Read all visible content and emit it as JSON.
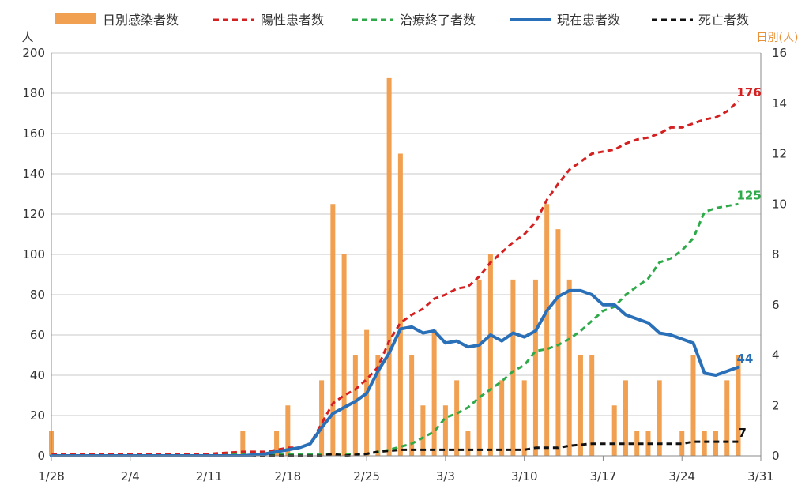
{
  "chart_data": {
    "type": "bar+line",
    "legend": {
      "daily": "日別感染者数",
      "positive": "陽性患者数",
      "recovered": "治療終了者数",
      "current": "現在患者数",
      "deaths": "死亡者数"
    },
    "left_axis": {
      "unit": "人",
      "min": 0,
      "max": 200,
      "ticks": [
        0,
        20,
        40,
        60,
        80,
        100,
        120,
        140,
        160,
        180,
        200
      ]
    },
    "right_axis": {
      "unit": "日別(人)",
      "min": 0,
      "max": 16,
      "ticks": [
        0,
        2,
        4,
        6,
        8,
        10,
        12,
        14,
        16
      ]
    },
    "x_ticks": [
      {
        "label": "1/28",
        "day": 0
      },
      {
        "label": "2/4",
        "day": 7
      },
      {
        "label": "2/11",
        "day": 14
      },
      {
        "label": "2/18",
        "day": 21
      },
      {
        "label": "2/25",
        "day": 28
      },
      {
        "label": "3/3",
        "day": 35
      },
      {
        "label": "3/10",
        "day": 42
      },
      {
        "label": "3/17",
        "day": 49
      },
      {
        "label": "3/24",
        "day": 56
      },
      {
        "label": "3/31",
        "day": 63
      }
    ],
    "day_span": 63,
    "colors": {
      "daily": "#F0A050",
      "positive": "#D42020",
      "recovered": "#2EAA4A",
      "current": "#2A70B8",
      "deaths": "#111111"
    },
    "end_labels": {
      "positive": "176",
      "recovered": "125",
      "current": "44",
      "deaths": "7"
    },
    "daily_bars": [
      {
        "day": 0,
        "value": 1
      },
      {
        "day": 17,
        "value": 1
      },
      {
        "day": 20,
        "value": 1
      },
      {
        "day": 21,
        "value": 2
      },
      {
        "day": 24,
        "value": 3
      },
      {
        "day": 25,
        "value": 10
      },
      {
        "day": 26,
        "value": 8
      },
      {
        "day": 27,
        "value": 4
      },
      {
        "day": 28,
        "value": 5
      },
      {
        "day": 29,
        "value": 4
      },
      {
        "day": 30,
        "value": 15
      },
      {
        "day": 31,
        "value": 12
      },
      {
        "day": 32,
        "value": 4
      },
      {
        "day": 33,
        "value": 2
      },
      {
        "day": 34,
        "value": 5
      },
      {
        "day": 35,
        "value": 2
      },
      {
        "day": 36,
        "value": 3
      },
      {
        "day": 37,
        "value": 1
      },
      {
        "day": 38,
        "value": 7
      },
      {
        "day": 39,
        "value": 8
      },
      {
        "day": 40,
        "value": 3
      },
      {
        "day": 41,
        "value": 7
      },
      {
        "day": 42,
        "value": 3
      },
      {
        "day": 43,
        "value": 7
      },
      {
        "day": 44,
        "value": 10
      },
      {
        "day": 45,
        "value": 9
      },
      {
        "day": 46,
        "value": 7
      },
      {
        "day": 47,
        "value": 4
      },
      {
        "day": 48,
        "value": 4
      },
      {
        "day": 50,
        "value": 2
      },
      {
        "day": 51,
        "value": 3
      },
      {
        "day": 52,
        "value": 1
      },
      {
        "day": 53,
        "value": 1
      },
      {
        "day": 54,
        "value": 3
      },
      {
        "day": 56,
        "value": 1
      },
      {
        "day": 57,
        "value": 4
      },
      {
        "day": 58,
        "value": 1
      },
      {
        "day": 59,
        "value": 1
      },
      {
        "day": 60,
        "value": 3
      },
      {
        "day": 61,
        "value": 4
      }
    ],
    "series": [
      {
        "key": "positive",
        "name": "陽性患者数",
        "dashed": true,
        "points": [
          [
            0,
            1
          ],
          [
            7,
            1
          ],
          [
            14,
            1
          ],
          [
            17,
            2
          ],
          [
            19,
            2
          ],
          [
            20,
            3
          ],
          [
            21,
            4
          ],
          [
            22,
            4
          ],
          [
            23,
            6
          ],
          [
            24,
            16
          ],
          [
            25,
            26
          ],
          [
            26,
            30
          ],
          [
            27,
            33
          ],
          [
            28,
            38
          ],
          [
            29,
            44
          ],
          [
            30,
            57
          ],
          [
            31,
            66
          ],
          [
            32,
            70
          ],
          [
            33,
            73
          ],
          [
            34,
            78
          ],
          [
            35,
            80
          ],
          [
            36,
            83
          ],
          [
            37,
            84
          ],
          [
            38,
            89
          ],
          [
            39,
            96
          ],
          [
            40,
            101
          ],
          [
            41,
            106
          ],
          [
            42,
            110
          ],
          [
            43,
            116
          ],
          [
            44,
            127
          ],
          [
            45,
            135
          ],
          [
            46,
            142
          ],
          [
            47,
            146
          ],
          [
            48,
            150
          ],
          [
            49,
            151
          ],
          [
            50,
            152
          ],
          [
            51,
            155
          ],
          [
            52,
            157
          ],
          [
            53,
            158
          ],
          [
            54,
            160
          ],
          [
            55,
            163
          ],
          [
            56,
            163
          ],
          [
            57,
            165
          ],
          [
            58,
            167
          ],
          [
            59,
            168
          ],
          [
            60,
            171
          ],
          [
            61,
            176
          ]
        ]
      },
      {
        "key": "recovered",
        "name": "治療終了者数",
        "dashed": true,
        "points": [
          [
            0,
            1
          ],
          [
            7,
            1
          ],
          [
            14,
            1
          ],
          [
            21,
            1
          ],
          [
            28,
            1
          ],
          [
            30,
            3
          ],
          [
            32,
            6
          ],
          [
            33,
            9
          ],
          [
            34,
            12
          ],
          [
            35,
            19
          ],
          [
            36,
            21
          ],
          [
            37,
            24
          ],
          [
            38,
            29
          ],
          [
            39,
            33
          ],
          [
            40,
            37
          ],
          [
            41,
            42
          ],
          [
            42,
            45
          ],
          [
            43,
            52
          ],
          [
            44,
            53
          ],
          [
            45,
            55
          ],
          [
            46,
            58
          ],
          [
            47,
            62
          ],
          [
            48,
            67
          ],
          [
            49,
            72
          ],
          [
            50,
            74
          ],
          [
            51,
            80
          ],
          [
            52,
            84
          ],
          [
            53,
            88
          ],
          [
            54,
            96
          ],
          [
            55,
            98
          ],
          [
            56,
            102
          ],
          [
            57,
            108
          ],
          [
            58,
            121
          ],
          [
            59,
            123
          ],
          [
            60,
            124
          ],
          [
            61,
            125
          ]
        ]
      },
      {
        "key": "current",
        "name": "現在患者数",
        "dashed": false,
        "points": [
          [
            0,
            0
          ],
          [
            7,
            0
          ],
          [
            14,
            0
          ],
          [
            17,
            0
          ],
          [
            19,
            1
          ],
          [
            20,
            2
          ],
          [
            21,
            3
          ],
          [
            22,
            4
          ],
          [
            23,
            6
          ],
          [
            24,
            14
          ],
          [
            25,
            21
          ],
          [
            26,
            24
          ],
          [
            27,
            27
          ],
          [
            28,
            31
          ],
          [
            29,
            42
          ],
          [
            30,
            51
          ],
          [
            31,
            63
          ],
          [
            32,
            64
          ],
          [
            33,
            61
          ],
          [
            34,
            62
          ],
          [
            35,
            56
          ],
          [
            36,
            57
          ],
          [
            37,
            54
          ],
          [
            38,
            55
          ],
          [
            39,
            60
          ],
          [
            40,
            57
          ],
          [
            41,
            61
          ],
          [
            42,
            59
          ],
          [
            43,
            62
          ],
          [
            44,
            72
          ],
          [
            45,
            79
          ],
          [
            46,
            82
          ],
          [
            47,
            82
          ],
          [
            48,
            80
          ],
          [
            49,
            75
          ],
          [
            50,
            75
          ],
          [
            51,
            70
          ],
          [
            52,
            68
          ],
          [
            53,
            66
          ],
          [
            54,
            61
          ],
          [
            55,
            60
          ],
          [
            56,
            58
          ],
          [
            57,
            56
          ],
          [
            58,
            41
          ],
          [
            59,
            40
          ],
          [
            60,
            42
          ],
          [
            61,
            44
          ]
        ]
      },
      {
        "key": "deaths",
        "name": "死亡者数",
        "dashed": true,
        "points": [
          [
            0,
            0
          ],
          [
            7,
            0
          ],
          [
            14,
            0
          ],
          [
            21,
            0
          ],
          [
            24,
            0
          ],
          [
            25,
            1
          ],
          [
            26,
            0
          ],
          [
            28,
            1
          ],
          [
            29,
            2
          ],
          [
            31,
            3
          ],
          [
            42,
            3
          ],
          [
            43,
            4
          ],
          [
            45,
            4
          ],
          [
            46,
            5
          ],
          [
            48,
            6
          ],
          [
            56,
            6
          ],
          [
            57,
            7
          ],
          [
            61,
            7
          ]
        ]
      }
    ]
  }
}
